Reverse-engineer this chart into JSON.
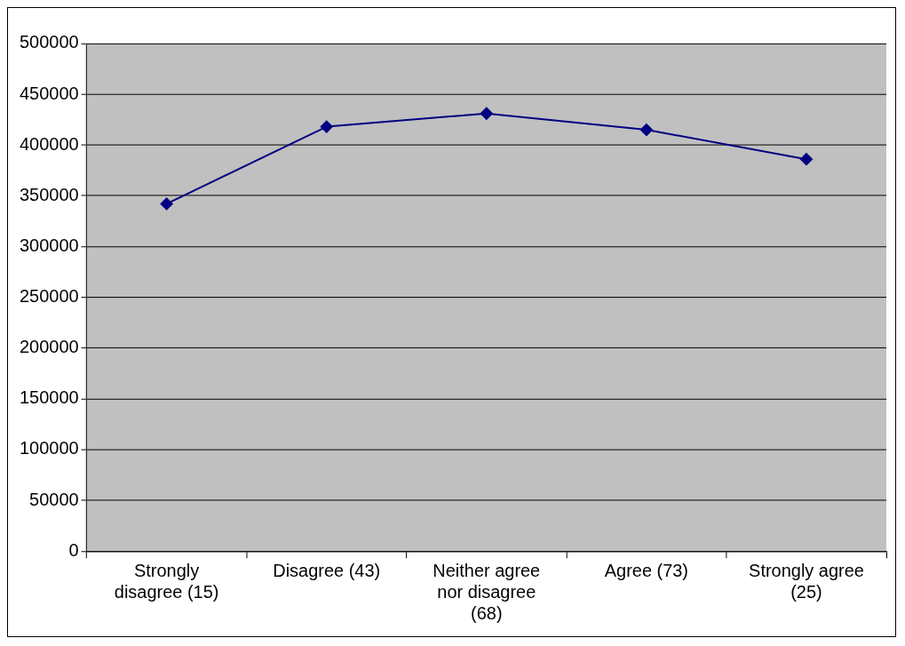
{
  "chart_data": {
    "type": "line",
    "categories": [
      "Strongly disagree (15)",
      "Disagree (43)",
      "Neither agree nor disagree (68)",
      "Agree (73)",
      "Strongly agree (25)"
    ],
    "series": [
      {
        "color": "#000080",
        "values": [
          342000,
          418000,
          431000,
          415000,
          386000
        ]
      }
    ],
    "ylim": [
      0,
      500000
    ],
    "yticks": [
      0,
      50000,
      100000,
      150000,
      200000,
      250000,
      300000,
      350000,
      400000,
      450000,
      500000
    ],
    "grid": "y",
    "legend": false,
    "marker": "diamond",
    "line_style": "solid"
  }
}
